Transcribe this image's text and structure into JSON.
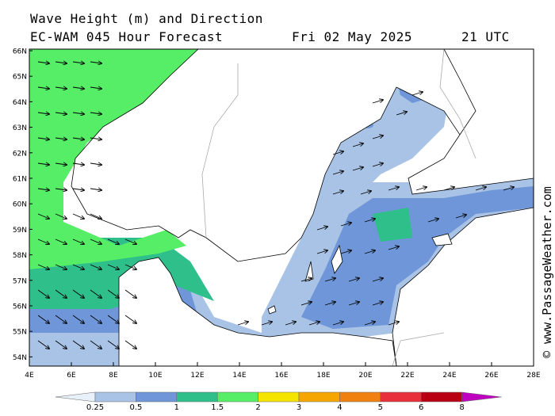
{
  "header": {
    "line1": "Wave Height (m) and Direction",
    "line2": "EC-WAM 045 Hour Forecast",
    "date": "Fri 02 May 2025",
    "utc": "21 UTC"
  },
  "credit": "© www.PassageWeather.com",
  "axes": {
    "lat_labels": [
      "66N",
      "65N",
      "64N",
      "63N",
      "62N",
      "61N",
      "60N",
      "59N",
      "58N",
      "57N",
      "56N",
      "55N",
      "54N"
    ],
    "lon_labels": [
      "4E",
      "6E",
      "8E",
      "10E",
      "12E",
      "14E",
      "16E",
      "18E",
      "20E",
      "22E",
      "24E",
      "26E",
      "28E"
    ]
  },
  "legend": {
    "ticks": [
      "0.25",
      "0.5",
      "1",
      "1.5",
      "2",
      "3",
      "4",
      "5",
      "6",
      "8"
    ],
    "colors": [
      "#e8f0fa",
      "#a9c3e6",
      "#6f96d8",
      "#2fbf8a",
      "#55ee66",
      "#f5e400",
      "#f5a600",
      "#f08010",
      "#e8303a",
      "#b80012",
      "#c000c0"
    ]
  },
  "colors": {
    "land": "#ffffff",
    "sea_calm": "#ffffff",
    "coast": "#000000",
    "border": "#aaaaaa"
  }
}
